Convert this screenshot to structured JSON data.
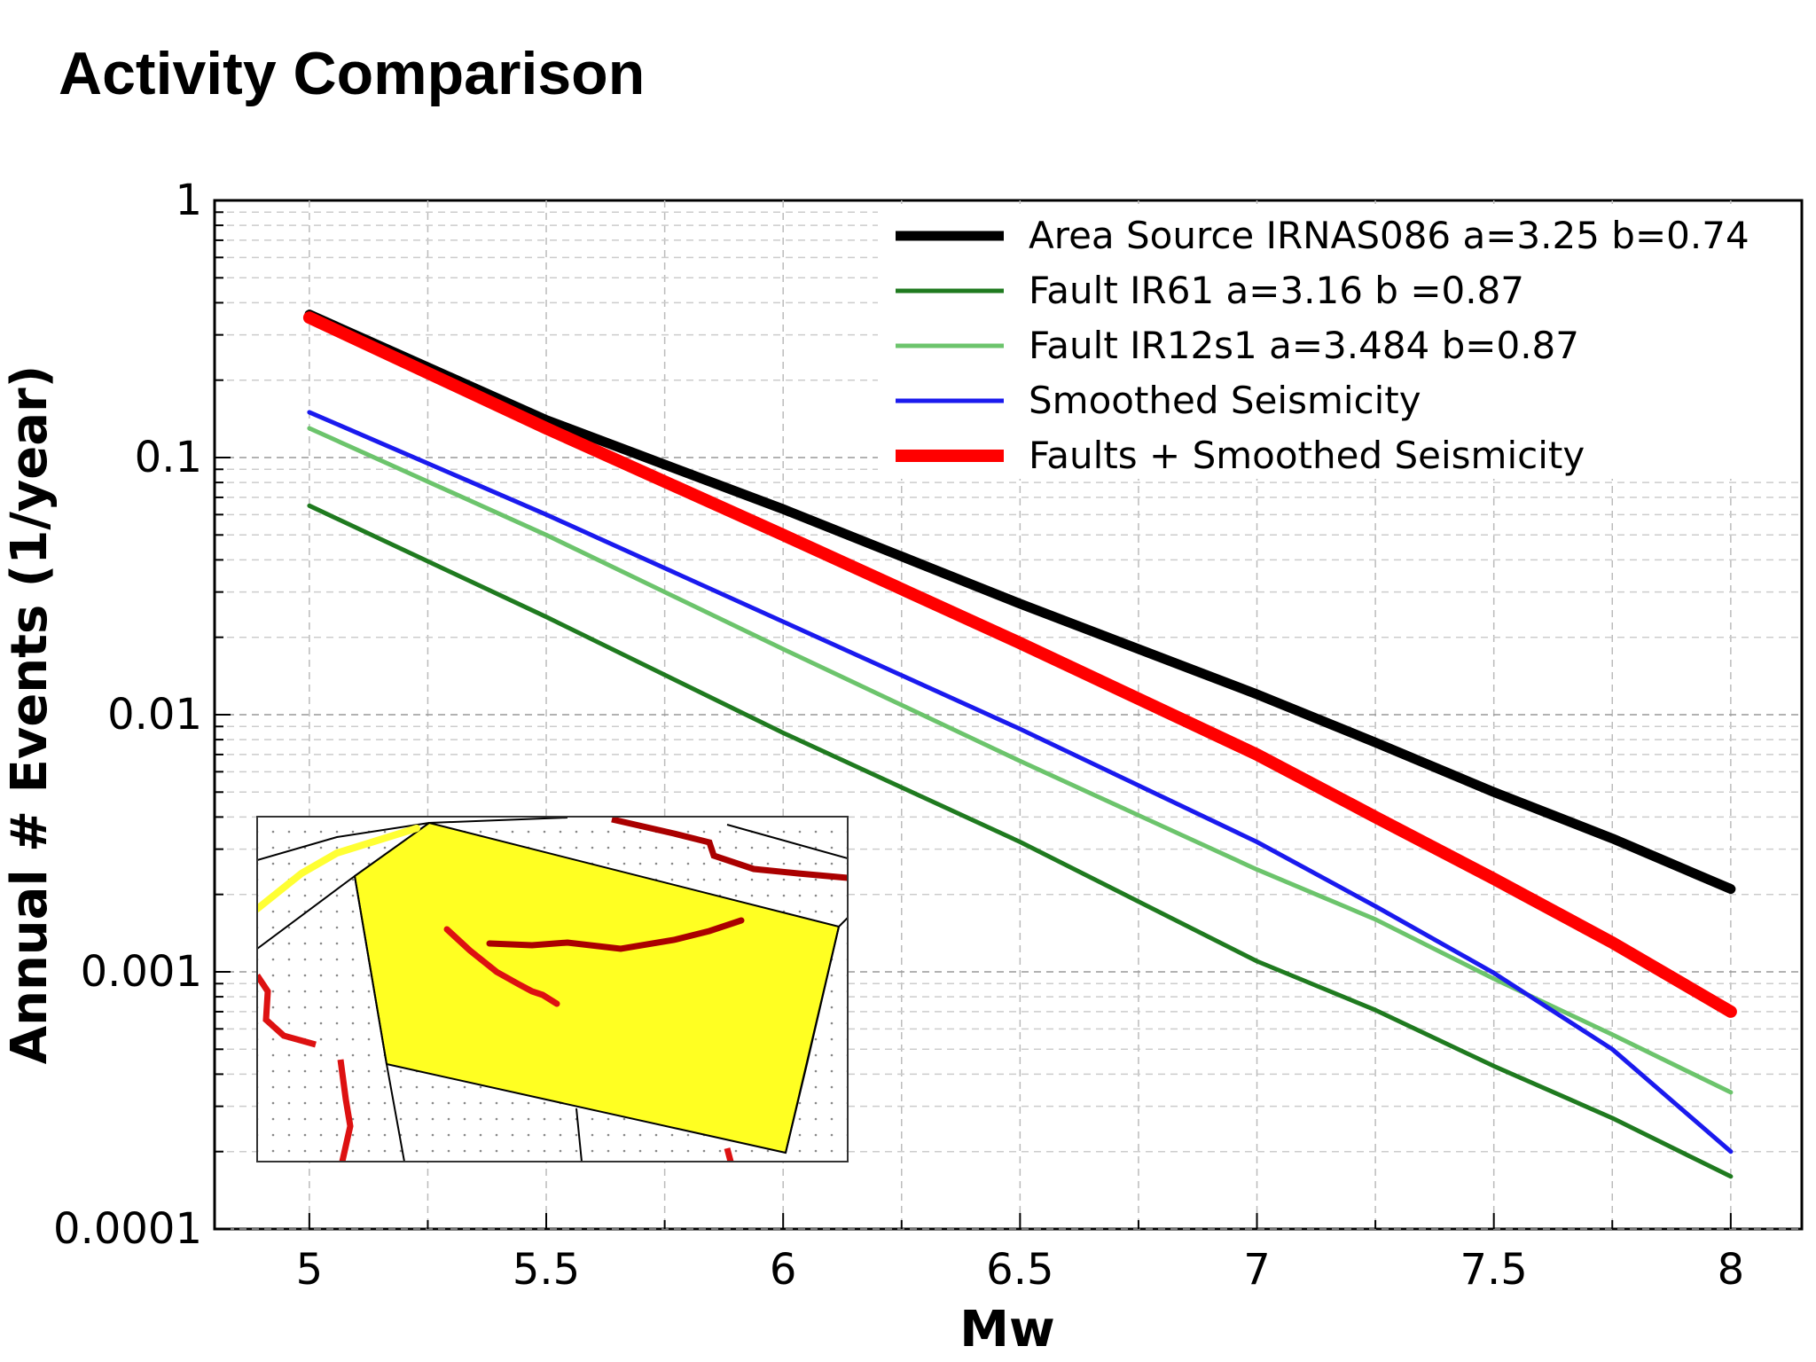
{
  "slide": {
    "title": "Activity Comparison"
  },
  "colors": {
    "area_source": "#000000",
    "fault_ir61": "#1f7a1f",
    "fault_ir12s1": "#6cc46c",
    "smoothed": "#1a1aee",
    "combined": "#ff0000",
    "inset_zone": "#ffff22",
    "inset_fault_dark": "#aa0000",
    "inset_fault_red": "#dd1111",
    "inset_fault_yellow": "#ffff33"
  },
  "inset": {
    "icon": "seismic-source-map"
  },
  "chart_data": {
    "type": "line",
    "xlabel": "Mw",
    "ylabel": "Annual # Events (1/year)",
    "xlim": [
      4.8,
      8.15
    ],
    "ylim": [
      0.0001,
      1
    ],
    "yscale": "log",
    "grid": true,
    "legend_position": "top-right",
    "x_ticks": [
      {
        "value": 5,
        "label": "5"
      },
      {
        "value": 5.5,
        "label": "5.5"
      },
      {
        "value": 6,
        "label": "6"
      },
      {
        "value": 6.5,
        "label": "6.5"
      },
      {
        "value": 7,
        "label": "7"
      },
      {
        "value": 7.5,
        "label": "7.5"
      },
      {
        "value": 8,
        "label": "8"
      }
    ],
    "y_ticks": [
      {
        "value": 1,
        "label": "1"
      },
      {
        "value": 0.1,
        "label": "0.1"
      },
      {
        "value": 0.01,
        "label": "0.01"
      },
      {
        "value": 0.001,
        "label": "0.001"
      },
      {
        "value": 0.0001,
        "label": "0.0001"
      }
    ],
    "x": [
      5.0,
      5.5,
      6.0,
      6.5,
      7.0,
      7.25,
      7.5,
      7.75,
      8.0
    ],
    "series": [
      {
        "name": "Area Source IRNAS086 a=3.25 b=0.74",
        "color_key": "area_source",
        "width": 11,
        "values": [
          0.36,
          0.14,
          0.063,
          0.027,
          0.012,
          0.0078,
          0.005,
          0.0033,
          0.0021
        ]
      },
      {
        "name": "Fault IR61 a=3.16 b =0.87",
        "color_key": "fault_ir61",
        "width": 5,
        "values": [
          0.065,
          0.024,
          0.0085,
          0.0032,
          0.0011,
          0.00071,
          0.00043,
          0.00027,
          0.00016
        ]
      },
      {
        "name": "Fault IR12s1 a=3.484 b=0.87",
        "color_key": "fault_ir12s1",
        "width": 5,
        "values": [
          0.13,
          0.05,
          0.018,
          0.0066,
          0.0025,
          0.0016,
          0.00094,
          0.00057,
          0.00034
        ]
      },
      {
        "name": "Smoothed Seismicity",
        "color_key": "smoothed",
        "width": 5,
        "values": [
          0.15,
          0.06,
          0.023,
          0.0088,
          0.0032,
          0.0018,
          0.00099,
          0.0005,
          0.0002
        ]
      },
      {
        "name": "Faults + Smoothed Seismicity",
        "color_key": "combined",
        "width": 14,
        "values": [
          0.35,
          0.13,
          0.05,
          0.019,
          0.007,
          0.004,
          0.0023,
          0.0013,
          0.0007
        ]
      }
    ]
  }
}
